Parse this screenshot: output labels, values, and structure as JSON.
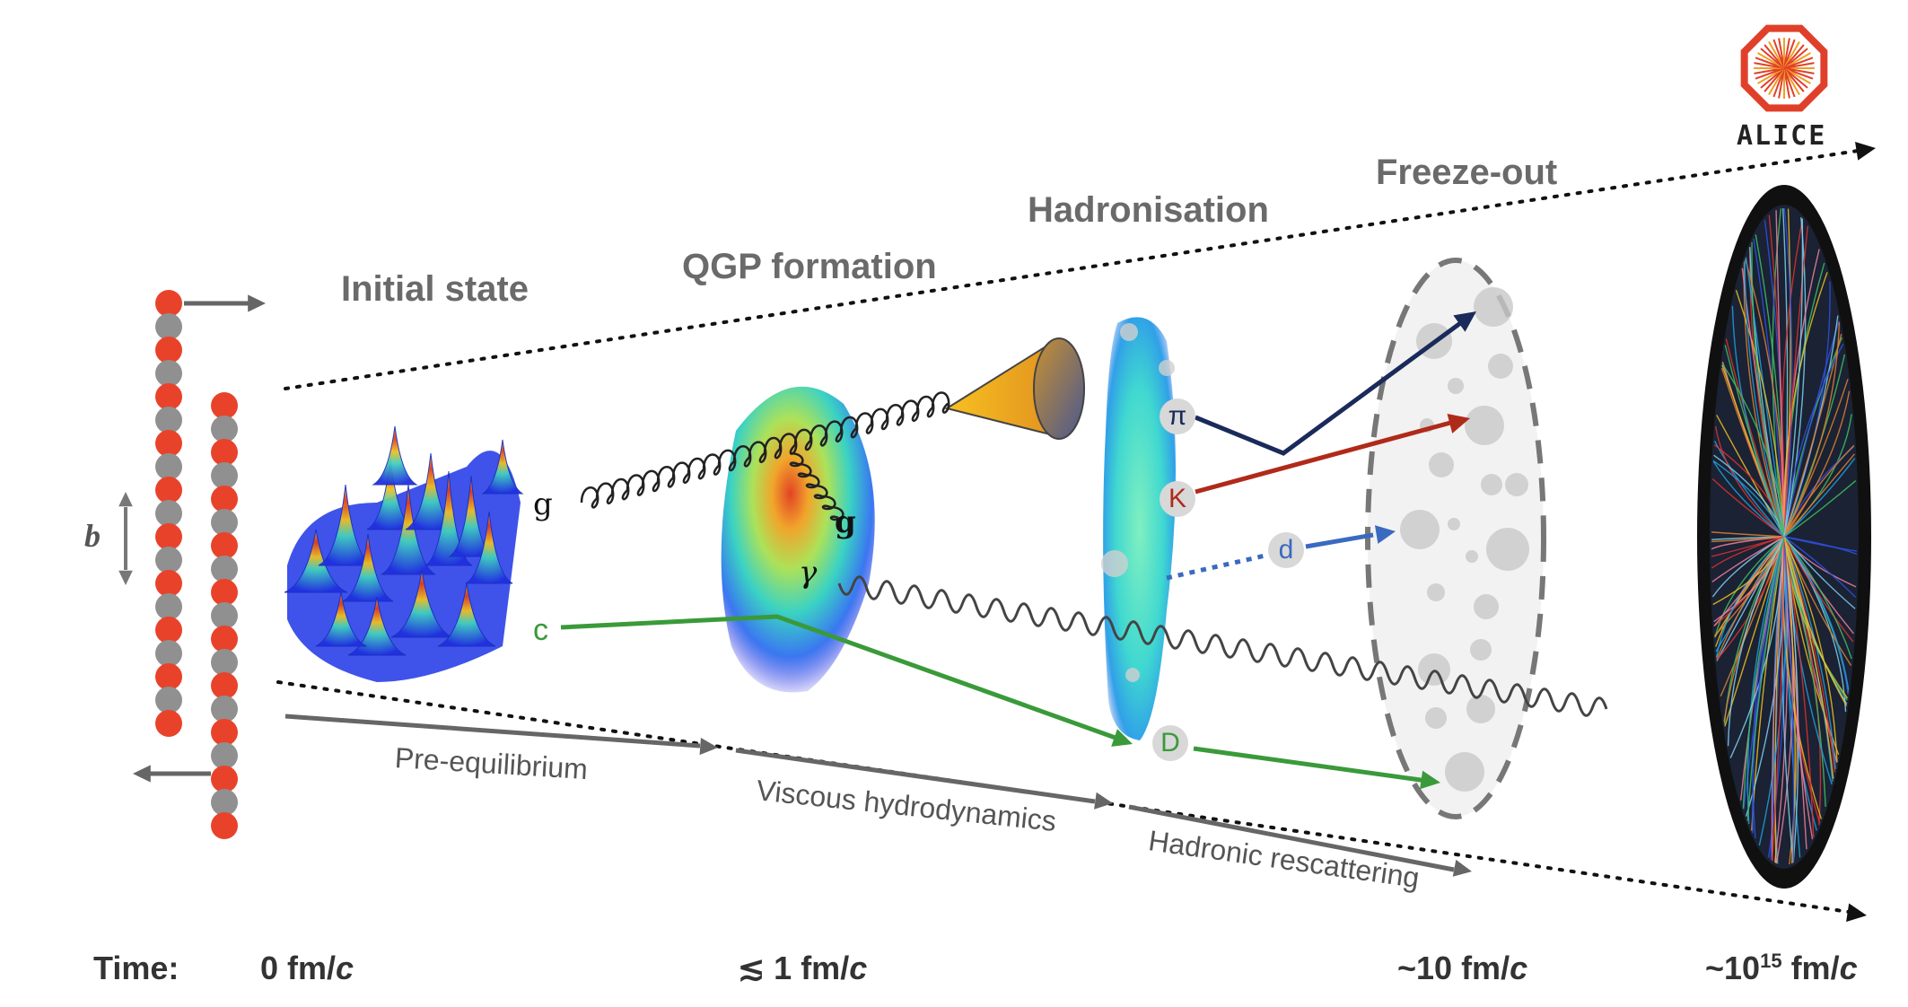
{
  "stages": {
    "initial_state": "Initial state",
    "qgp_formation": "QGP formation",
    "hadronisation": "Hadronisation",
    "freeze_out": "Freeze-out"
  },
  "phases": {
    "pre_equilibrium": "Pre-equilibrium",
    "viscous_hydrodynamics": "Viscous hydrodynamics",
    "hadronic_rescattering": "Hadronic rescattering"
  },
  "timeline": {
    "label": "Time:",
    "t0": "0 fm/",
    "t1": "≲ 1 fm/",
    "t2": "~10 fm/",
    "t3_prefix": "~10",
    "t3_exp": "15",
    "t3_suffix": " fm/",
    "c": "c"
  },
  "particles": {
    "gluon": "g",
    "gluon2": "g",
    "photon": "γ",
    "charm": "c",
    "pion": "π",
    "kaon": "K",
    "deuteron": "d",
    "d_meson": "D"
  },
  "impact_parameter": "b",
  "logo": {
    "text": "ALICE",
    "color": "#e0402a"
  },
  "colors": {
    "nucleon_red": "#e8432a",
    "nucleon_gray": "#909090",
    "charm_green": "#3a9a3a",
    "pion_navy": "#1a2a5a",
    "kaon_red": "#b02a1a",
    "deuteron_blue": "#3a6ac0",
    "photon_gray": "#444444"
  }
}
